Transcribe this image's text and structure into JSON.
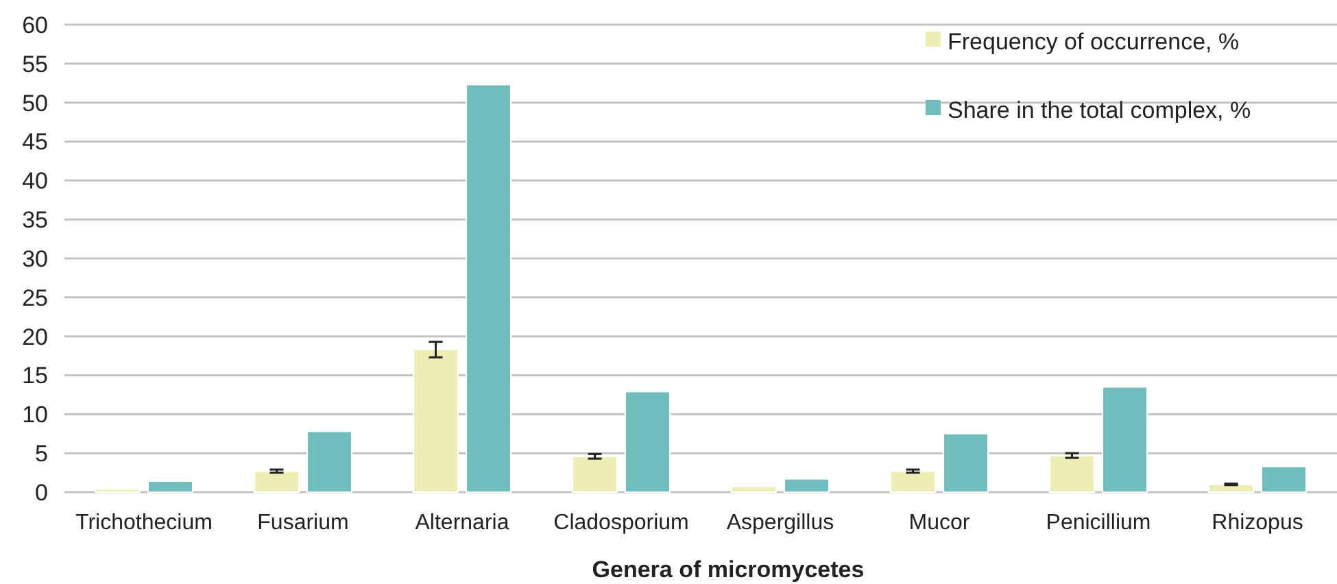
{
  "chart_data": {
    "type": "bar",
    "xlabel": "Genera of micromycetes",
    "categories": [
      "Trichothecium",
      "Fusarium",
      "Alternaria",
      "Cladosporium",
      "Aspergillus",
      "Mucor",
      "Penicillium",
      "Rhizopus"
    ],
    "series": [
      {
        "name": "Frequency of occurrence, %",
        "color": "#edeeb3",
        "values": [
          0.4,
          2.7,
          18.3,
          4.6,
          0.7,
          2.7,
          4.7,
          1.0
        ],
        "errors": [
          null,
          0.2,
          1.0,
          0.3,
          null,
          0.2,
          0.3,
          0.1
        ]
      },
      {
        "name": "Share in the total complex, %",
        "color": "#6fbdbd",
        "values": [
          1.4,
          7.8,
          52.3,
          12.9,
          1.7,
          7.5,
          13.5,
          3.3
        ]
      }
    ],
    "ylim": [
      0,
      60
    ],
    "yticks": [
      0,
      5,
      10,
      15,
      20,
      25,
      30,
      35,
      40,
      45,
      50,
      55,
      60
    ],
    "grid": "y",
    "legend": "top right"
  }
}
